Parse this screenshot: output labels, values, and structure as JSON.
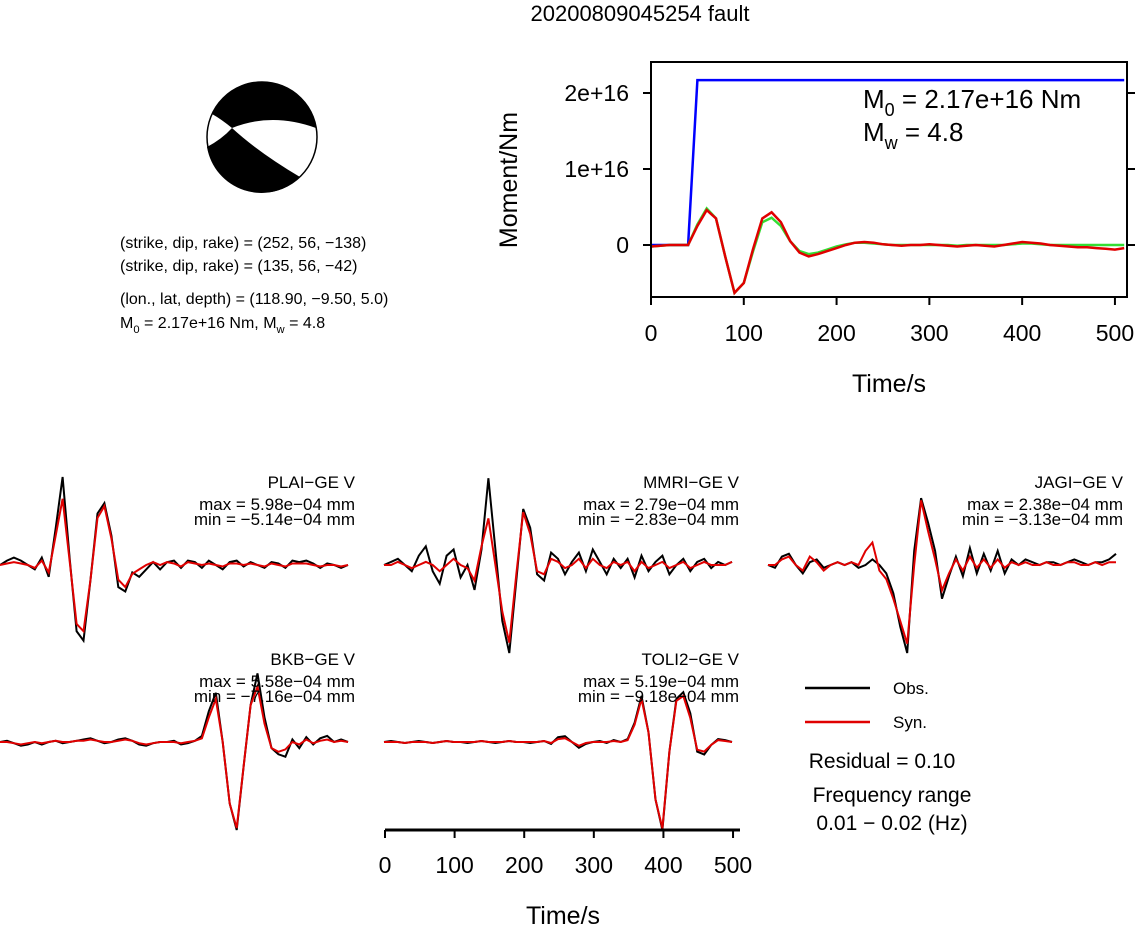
{
  "title": "20200809045254 fault",
  "source_parameters": {
    "lines": [
      "(strike, dip, rake) = (252, 56, −138)",
      "(strike, dip, rake) = (135, 56, −42)",
      "(lon., lat, depth) = (118.90, −9.50, 5.0)"
    ],
    "moment_line": [
      {
        "symbol": "M",
        "subscript": "0",
        "text": " = 2.17e+16 Nm, "
      },
      {
        "symbol": "M",
        "subscript": "w",
        "text": " = 4.8"
      }
    ]
  },
  "chart_data": [
    {
      "type": "line",
      "xlabel": "Time/s",
      "ylabel": "Moment/Nm",
      "xlim": [
        0,
        513
      ],
      "ylim": [
        -6840000000000000.0,
        2.408e+16
      ],
      "xticks": [
        0,
        100,
        200,
        300,
        400,
        500
      ],
      "yticks": [
        0,
        {
          "value": 1e+16,
          "label": "1e+16"
        },
        {
          "value": 2e+16,
          "label": "2e+16"
        }
      ],
      "annotations": [
        {
          "symbol": "M",
          "subscript": "0",
          "text": " = 2.17e+16 Nm"
        },
        {
          "symbol": "M",
          "subscript": "w",
          "text": " = 4.8"
        }
      ],
      "x": [
        0,
        10,
        20,
        30,
        40,
        50,
        60,
        70,
        80,
        90,
        100,
        110,
        120,
        130,
        140,
        150,
        160,
        170,
        180,
        190,
        200,
        210,
        220,
        230,
        240,
        250,
        260,
        270,
        280,
        290,
        300,
        310,
        320,
        330,
        340,
        350,
        360,
        370,
        380,
        390,
        400,
        410,
        420,
        430,
        440,
        450,
        460,
        470,
        480,
        490,
        500,
        510
      ],
      "series": [
        {
          "color": "#0000ff",
          "values": [
            0,
            0,
            0,
            0,
            0,
            2.17e+16,
            2.17e+16,
            2.17e+16,
            2.17e+16,
            2.17e+16,
            2.17e+16,
            2.17e+16,
            2.17e+16,
            2.17e+16,
            2.17e+16,
            2.17e+16,
            2.17e+16,
            2.17e+16,
            2.17e+16,
            2.17e+16,
            2.17e+16,
            2.17e+16,
            2.17e+16,
            2.17e+16,
            2.17e+16,
            2.17e+16,
            2.17e+16,
            2.17e+16,
            2.17e+16,
            2.17e+16,
            2.17e+16,
            2.17e+16,
            2.17e+16,
            2.17e+16,
            2.17e+16,
            2.17e+16,
            2.17e+16,
            2.17e+16,
            2.17e+16,
            2.17e+16,
            2.17e+16,
            2.17e+16,
            2.17e+16,
            2.17e+16,
            2.17e+16,
            2.17e+16,
            2.17e+16,
            2.17e+16,
            2.17e+16,
            2.17e+16,
            2.17e+16,
            2.17e+16
          ]
        },
        {
          "color": "#33dd33",
          "values": [
            -200000000000000.0,
            -100000000000000.0,
            0,
            0,
            0,
            2700000000000000.0,
            4800000000000000.0,
            3500000000000000.0,
            -1500000000000000.0,
            -6300000000000000.0,
            -5000000000000000.0,
            -800000000000000.0,
            3000000000000000.0,
            3600000000000000.0,
            2500000000000000.0,
            500000000000000.0,
            -800000000000000.0,
            -1200000000000000.0,
            -1000000000000000.0,
            -600000000000000.0,
            -200000000000000.0,
            100000000000000.0,
            300000000000000.0,
            300000000000000.0,
            200000000000000.0,
            100000000000000.0,
            0,
            0,
            0,
            0,
            0,
            0,
            0,
            -100000000000000.0,
            0,
            0,
            0,
            0,
            0,
            100000000000000.0,
            200000000000000.0,
            200000000000000.0,
            100000000000000.0,
            0,
            0,
            0,
            0,
            0,
            0,
            0,
            0,
            0
          ]
        },
        {
          "color": "#e00000",
          "values": [
            -200000000000000.0,
            -100000000000000.0,
            0,
            0,
            0,
            2500000000000000.0,
            4600000000000000.0,
            3500000000000000.0,
            -1500000000000000.0,
            -6300000000000000.0,
            -5000000000000000.0,
            -500000000000000.0,
            3500000000000000.0,
            4300000000000000.0,
            3000000000000000.0,
            500000000000000.0,
            -1000000000000000.0,
            -1500000000000000.0,
            -1200000000000000.0,
            -800000000000000.0,
            -400000000000000.0,
            0,
            300000000000000.0,
            400000000000000.0,
            300000000000000.0,
            100000000000000.0,
            0,
            -100000000000000.0,
            0,
            0,
            100000000000000.0,
            0,
            -100000000000000.0,
            -200000000000000.0,
            -100000000000000.0,
            0,
            -100000000000000.0,
            -200000000000000.0,
            0,
            200000000000000.0,
            400000000000000.0,
            300000000000000.0,
            200000000000000.0,
            0,
            -100000000000000.0,
            -200000000000000.0,
            -300000000000000.0,
            -300000000000000.0,
            -400000000000000.0,
            -500000000000000.0,
            -600000000000000.0,
            -400000000000000.0
          ]
        }
      ]
    },
    {
      "type": "waveform",
      "xlabel": "Time/s",
      "xlim": [
        0,
        510
      ],
      "xticks": [
        0,
        100,
        200,
        300,
        400,
        500
      ],
      "legend": [
        {
          "name": "Obs.",
          "color": "#000000"
        },
        {
          "name": "Syn.",
          "color": "#e00000"
        }
      ],
      "residual": "Residual = 0.10",
      "frequency_label": "Frequency range",
      "frequency": "0.01 − 0.02 (Hz)",
      "x": [
        0,
        10,
        20,
        30,
        40,
        50,
        60,
        70,
        80,
        90,
        100,
        110,
        120,
        130,
        140,
        150,
        160,
        170,
        180,
        190,
        200,
        210,
        220,
        230,
        240,
        250,
        260,
        270,
        280,
        290,
        300,
        310,
        320,
        330,
        340,
        350,
        360,
        370,
        380,
        390,
        400,
        410,
        420,
        430,
        440,
        450,
        460,
        470,
        480,
        490,
        500
      ],
      "stations": [
        {
          "label": "PLAI−GE V",
          "max_label": "max = 5.98e−04 mm",
          "min_label": "min = −5.14e−04 mm",
          "obs": [
            0,
            3e-05,
            5e-05,
            3e-05,
            0,
            -3e-05,
            5e-05,
            -8e-05,
            0.00025,
            0.000598,
            5e-05,
            -0.00045,
            -0.000514,
            -0.0001,
            0.00035,
            0.00042,
            0.0002,
            -0.00015,
            -0.00018,
            -5e-05,
            -8e-05,
            -3e-05,
            2e-05,
            -3e-05,
            2e-05,
            3e-05,
            -2e-05,
            3e-05,
            2e-05,
            -2e-05,
            3e-05,
            0,
            -3e-05,
            2e-05,
            3e-05,
            -1e-05,
            2e-05,
            0,
            -2e-05,
            2e-05,
            1e-05,
            -2e-05,
            3e-05,
            2e-05,
            3e-05,
            1e-05,
            -2e-05,
            1e-05,
            0,
            -2e-05,
            0
          ],
          "syn": [
            0,
            1e-05,
            2e-05,
            1e-05,
            0,
            -2e-05,
            3e-05,
            -5e-05,
            0.0002,
            0.00045,
            3e-05,
            -0.0004,
            -0.00045,
            -0.0001,
            0.00032,
            0.0004,
            0.00018,
            -0.0001,
            -0.00015,
            -6e-05,
            -3e-05,
            0,
            2e-05,
            0,
            2e-05,
            1e-05,
            -1e-05,
            2e-05,
            1e-05,
            0,
            1e-05,
            0,
            -1e-05,
            1e-05,
            1e-05,
            0,
            1e-05,
            0,
            -1e-05,
            1e-05,
            0,
            -1e-05,
            1e-05,
            1e-05,
            1e-05,
            0,
            -1e-05,
            0,
            0,
            -1e-05,
            0
          ]
        },
        {
          "label": "MMRI−GE V",
          "max_label": "max = 2.79e−04 mm",
          "min_label": "min = −2.83e−04 mm",
          "obs": [
            0,
            1e-05,
            2e-05,
            0,
            -2e-05,
            3e-05,
            6e-05,
            -2e-05,
            -6e-05,
            3e-05,
            5e-05,
            -4e-05,
            0,
            -8e-05,
            5e-05,
            0.000279,
            5e-05,
            -0.00018,
            -0.000283,
            -5e-05,
            0.00018,
            0.00012,
            -3e-05,
            -5e-05,
            4e-05,
            2e-05,
            -3e-05,
            1e-05,
            4e-05,
            -2e-05,
            5e-05,
            1e-05,
            -3e-05,
            2e-05,
            -1e-05,
            2e-05,
            -4e-05,
            3e-05,
            -2e-05,
            1e-05,
            3e-05,
            -3e-05,
            0,
            2e-05,
            -2e-05,
            1e-05,
            2e-05,
            -1e-05,
            1e-05,
            0,
            1e-05
          ],
          "syn": [
            0,
            0,
            1e-05,
            0,
            -1e-05,
            0,
            1e-05,
            0,
            -2e-05,
            0,
            2e-05,
            0,
            -1e-05,
            -5e-05,
            6e-05,
            0.00015,
            0,
            -0.00015,
            -0.00025,
            -3e-05,
            0.00017,
            0.0001,
            -2e-05,
            -3e-05,
            2e-05,
            1e-05,
            -1e-05,
            0,
            2e-05,
            -1e-05,
            2e-05,
            0,
            -1e-05,
            1e-05,
            0,
            1e-05,
            -2e-05,
            1e-05,
            -1e-05,
            0,
            1e-05,
            -1e-05,
            0,
            1e-05,
            -1e-05,
            0,
            1e-05,
            0,
            0,
            0,
            1e-05
          ]
        },
        {
          "label": "JAGI−GE V",
          "max_label": "max = 2.38e−04 mm",
          "min_label": "min = −3.13e−04 mm",
          "obs": [
            0,
            -1e-05,
            3e-05,
            4e-05,
            0,
            -3e-05,
            1e-05,
            2e-05,
            -1e-05,
            0,
            1e-05,
            0,
            1e-05,
            -1e-05,
            0,
            2e-05,
            0,
            -3e-05,
            -0.0001,
            -0.00022,
            -0.000313,
            5e-05,
            0.000238,
            0.00015,
            5e-05,
            -0.00012,
            -4e-05,
            3e-05,
            -4e-05,
            6e-05,
            -3e-05,
            4e-05,
            -2e-05,
            5e-05,
            -3e-05,
            2e-05,
            0,
            2e-05,
            1e-05,
            0,
            1e-05,
            1e-05,
            0,
            1e-05,
            2e-05,
            1e-05,
            0,
            1e-05,
            1e-05,
            2e-05,
            4e-05
          ],
          "syn": [
            0,
            0,
            2e-05,
            3e-05,
            0,
            -2e-05,
            3e-05,
            1e-05,
            -2e-05,
            0,
            1e-05,
            0,
            1e-05,
            0,
            5e-05,
            8e-05,
            -2e-05,
            -5e-05,
            -0.00012,
            -0.0002,
            -0.00028,
            0,
            0.00023,
            0.00012,
            2e-05,
            -9e-05,
            -3e-05,
            2e-05,
            -2e-05,
            3e-05,
            -1e-05,
            2e-05,
            -1e-05,
            2e-05,
            -1e-05,
            1e-05,
            0,
            1e-05,
            0,
            0,
            1e-05,
            0,
            0,
            1e-05,
            1e-05,
            0,
            0,
            1e-05,
            0,
            1e-05,
            1e-05
          ]
        },
        {
          "label": "BKB−GE V",
          "max_label": "max = 5.58e−04 mm",
          "min_label": "min = −7.16e−04 mm",
          "obs": [
            0,
            1e-05,
            -1e-05,
            -3e-05,
            -2e-05,
            0,
            -2e-05,
            0,
            1e-05,
            -1e-05,
            0,
            1e-05,
            2e-05,
            3e-05,
            1e-05,
            -1e-05,
            0,
            2e-05,
            3e-05,
            1e-05,
            -2e-05,
            -3e-05,
            -1e-05,
            0,
            0,
            1e-05,
            -2e-05,
            -1e-05,
            1e-05,
            5e-05,
            0.00025,
            0.0004,
            0,
            -0.0005,
            -0.000716,
            -0.0002,
            0.0003,
            0.000558,
            0.0002,
            -5e-05,
            -0.0001,
            -0.00012,
            2e-05,
            -5e-05,
            4e-05,
            -2e-05,
            3e-05,
            5e-05,
            0,
            2e-05,
            0
          ],
          "syn": [
            0,
            0,
            -1e-05,
            -2e-05,
            -1e-05,
            0,
            -1e-05,
            0,
            1e-05,
            0,
            0,
            1e-05,
            1e-05,
            2e-05,
            1e-05,
            0,
            0,
            1e-05,
            2e-05,
            1e-05,
            -1e-05,
            -2e-05,
            -1e-05,
            0,
            0,
            0,
            -1e-05,
            0,
            1e-05,
            3e-05,
            0.0002,
            0.00035,
            0,
            -0.0005,
            -0.0007,
            -0.0002,
            0.0003,
            0.00045,
            0.00015,
            -5e-05,
            -8e-05,
            -6e-05,
            0,
            -2e-05,
            2e-05,
            -1e-05,
            1e-05,
            2e-05,
            0,
            1e-05,
            0
          ]
        },
        {
          "label": "TOLI2−GE V",
          "max_label": "max = 5.19e−04 mm",
          "min_label": "min = −9.18e−04 mm",
          "obs": [
            0,
            1e-05,
            0,
            -1e-05,
            0,
            1e-05,
            0,
            -1e-05,
            0,
            1e-05,
            0,
            0,
            -1e-05,
            0,
            1e-05,
            0,
            -1e-05,
            0,
            1e-05,
            0,
            0,
            -1e-05,
            0,
            1e-05,
            -2e-05,
            5e-05,
            6e-05,
            0,
            -6e-05,
            -2e-05,
            0,
            1e-05,
            -1e-05,
            2e-05,
            0,
            3e-05,
            0.0002,
            0.00048,
            0.0001,
            -0.0006,
            -0.000918,
            -0.0001,
            0.00045,
            0.000519,
            0.0003,
            -0.0001,
            -0.00013,
            -3e-05,
            3e-05,
            2e-05,
            0
          ],
          "syn": [
            0,
            0,
            0,
            -1e-05,
            0,
            0,
            0,
            -1e-05,
            0,
            1e-05,
            0,
            0,
            0,
            0,
            1e-05,
            0,
            0,
            0,
            1e-05,
            0,
            0,
            0,
            0,
            1e-05,
            -1e-05,
            3e-05,
            4e-05,
            0,
            -4e-05,
            -1e-05,
            0,
            0,
            0,
            1e-05,
            0,
            2e-05,
            0.00018,
            0.00045,
            0.0001,
            -0.0006,
            -0.0009,
            -0.0001,
            0.00043,
            0.00048,
            0.00025,
            -8e-05,
            -0.0001,
            -3e-05,
            2e-05,
            1e-05,
            0
          ]
        }
      ]
    }
  ]
}
